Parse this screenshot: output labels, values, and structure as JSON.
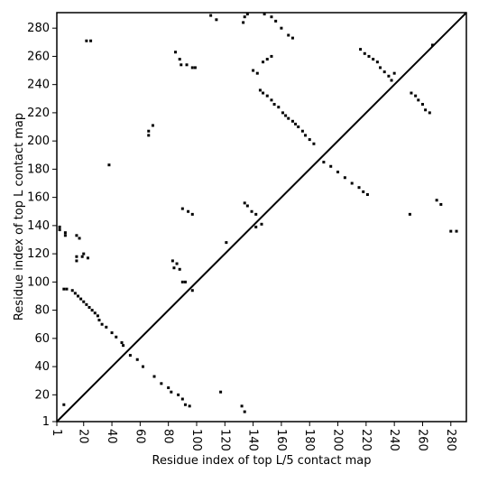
{
  "chart_data": {
    "type": "scatter",
    "xlabel": "Residue index of top L/5 contact map",
    "ylabel": "Residue index of top L contact map",
    "xlim": [
      1,
      291
    ],
    "ylim": [
      1,
      291
    ],
    "xticks": [
      1,
      20,
      40,
      60,
      80,
      100,
      120,
      140,
      160,
      180,
      200,
      220,
      240,
      260,
      280
    ],
    "yticks": [
      1,
      20,
      40,
      60,
      80,
      100,
      120,
      140,
      160,
      180,
      200,
      220,
      240,
      260,
      280
    ],
    "diagonal": true,
    "series": [
      {
        "color": "#000000",
        "x": [
          3,
          3,
          7,
          7,
          6,
          8,
          12,
          14,
          16,
          18,
          20,
          22,
          24,
          26,
          28,
          30,
          31,
          33,
          36,
          40,
          43,
          47,
          48,
          53,
          15,
          17,
          15,
          19,
          15,
          20,
          23,
          22,
          25,
          38,
          66,
          69,
          66,
          83,
          86,
          84,
          88,
          90,
          92,
          97,
          85,
          88,
          89,
          93,
          97,
          99,
          90,
          94,
          97,
          110,
          114,
          121,
          134,
          136,
          133,
          134,
          136,
          139,
          142,
          140,
          143,
          145,
          147,
          150,
          153,
          155,
          158,
          161,
          163,
          165,
          168,
          170,
          172,
          175,
          177,
          180,
          183,
          148,
          153,
          156,
          160,
          165,
          168,
          147,
          150,
          153,
          146,
          142,
          216,
          219,
          222,
          225,
          228,
          230,
          233,
          236,
          238,
          240,
          6
        ],
        "y": [
          139,
          137,
          135,
          133,
          95,
          95,
          94,
          92,
          90,
          88,
          86,
          84,
          82,
          80,
          78,
          76,
          73,
          70,
          68,
          64,
          61,
          57,
          55,
          48,
          133,
          131,
          118,
          118,
          115,
          120,
          117,
          271,
          271,
          183,
          207,
          211,
          204,
          115,
          113,
          110,
          109,
          100,
          100,
          94,
          263,
          258,
          254,
          254,
          252,
          252,
          152,
          150,
          148,
          289,
          286,
          128,
          288,
          290,
          284,
          156,
          154,
          150,
          148,
          250,
          248,
          236,
          234,
          232,
          229,
          226,
          224,
          220,
          218,
          216,
          214,
          212,
          210,
          207,
          204,
          201,
          198,
          290,
          288,
          285,
          280,
          275,
          273,
          256,
          258,
          260,
          141,
          139,
          265,
          262,
          260,
          258,
          256,
          252,
          249,
          246,
          243,
          248,
          13
        ]
      },
      {
        "color": "#000000",
        "x": [
          58,
          62,
          70,
          75,
          80,
          82,
          87,
          90,
          92,
          95,
          117,
          132,
          134,
          190,
          195,
          200,
          205,
          210,
          215,
          218,
          221,
          251,
          252,
          255,
          257,
          260,
          262,
          265,
          270,
          273,
          280,
          284,
          267
        ],
        "y": [
          45,
          40,
          33,
          28,
          25,
          22,
          20,
          17,
          13,
          12,
          22,
          12,
          8,
          185,
          182,
          178,
          174,
          170,
          167,
          164,
          162,
          148,
          234,
          232,
          229,
          226,
          222,
          220,
          158,
          155,
          136,
          136,
          268
        ]
      }
    ]
  }
}
